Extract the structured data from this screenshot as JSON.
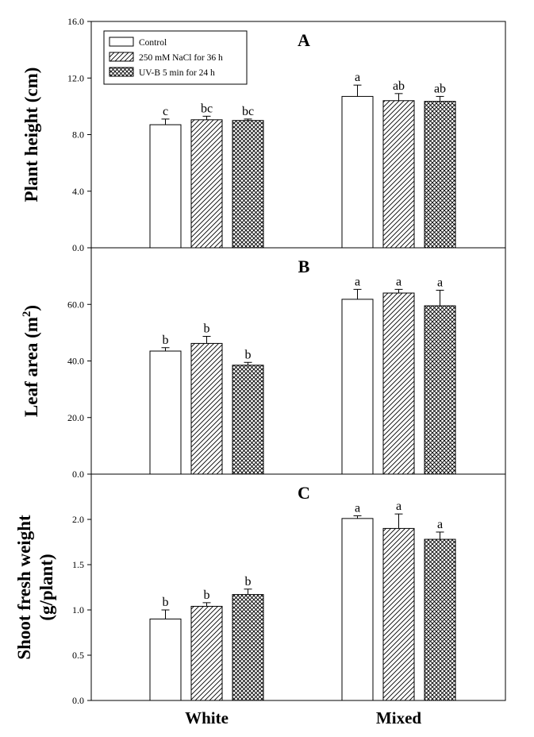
{
  "chart_data": [
    {
      "type": "bar",
      "panel_label": "A",
      "ylabel": "Plant height (cm)",
      "ylim": [
        0,
        16
      ],
      "yticks": [
        "0.0",
        "4.0",
        "8.0",
        "12.0",
        "16.0"
      ],
      "categories": [
        "White",
        "Mixed"
      ],
      "series": [
        {
          "name": "Control",
          "values": [
            8.7,
            10.7
          ],
          "errors": [
            0.4,
            0.8
          ],
          "labels": [
            "c",
            "a"
          ],
          "pattern": "none"
        },
        {
          "name": "250 mM NaCl for 36 h",
          "values": [
            9.05,
            10.4
          ],
          "errors": [
            0.25,
            0.5
          ],
          "labels": [
            "bc",
            "ab"
          ],
          "pattern": "hatch"
        },
        {
          "name": "UV-B 5 min for 24 h",
          "values": [
            9.0,
            10.35
          ],
          "errors": [
            0.1,
            0.35
          ],
          "labels": [
            "bc",
            "ab"
          ],
          "pattern": "crosshatch"
        }
      ],
      "legend": {
        "position": "top-left",
        "entries": [
          "Control",
          "250 mM NaCl for 36 h",
          "UV-B 5 min for 24 h"
        ]
      }
    },
    {
      "type": "bar",
      "panel_label": "B",
      "ylabel": "Leaf area (m",
      "ylabel_superscript": "2",
      "ylabel_close": ")",
      "ylim": [
        0,
        80
      ],
      "yticks": [
        "0.0",
        "20.0",
        "40.0",
        "60.0"
      ],
      "categories": [
        "White",
        "Mixed"
      ],
      "series": [
        {
          "name": "Control",
          "values": [
            43.5,
            61.8
          ],
          "errors": [
            1.2,
            3.5
          ],
          "labels": [
            "b",
            "a"
          ],
          "pattern": "none"
        },
        {
          "name": "250 mM NaCl for 36 h",
          "values": [
            46.2,
            64.0
          ],
          "errors": [
            2.5,
            1.3
          ],
          "labels": [
            "b",
            "a"
          ],
          "pattern": "hatch"
        },
        {
          "name": "UV-B 5 min for 24 h",
          "values": [
            38.5,
            59.5
          ],
          "errors": [
            1.0,
            5.5
          ],
          "labels": [
            "b",
            "a"
          ],
          "pattern": "crosshatch"
        }
      ]
    },
    {
      "type": "bar",
      "panel_label": "C",
      "ylabel": "Shoot fresh weight",
      "ylabel_line2": "(g/plant)",
      "ylim": [
        0,
        2.5
      ],
      "yticks": [
        "0.0",
        "0.5",
        "1.0",
        "1.5",
        "2.0"
      ],
      "categories": [
        "White",
        "Mixed"
      ],
      "series": [
        {
          "name": "Control",
          "values": [
            0.9,
            2.01
          ],
          "errors": [
            0.1,
            0.03
          ],
          "labels": [
            "b",
            "a"
          ],
          "pattern": "none"
        },
        {
          "name": "250 mM NaCl for 36 h",
          "values": [
            1.04,
            1.9
          ],
          "errors": [
            0.04,
            0.16
          ],
          "labels": [
            "b",
            "a"
          ],
          "pattern": "hatch"
        },
        {
          "name": "UV-B 5 min for 24 h",
          "values": [
            1.17,
            1.78
          ],
          "errors": [
            0.06,
            0.08
          ],
          "labels": [
            "b",
            "a"
          ],
          "pattern": "crosshatch"
        }
      ]
    }
  ]
}
